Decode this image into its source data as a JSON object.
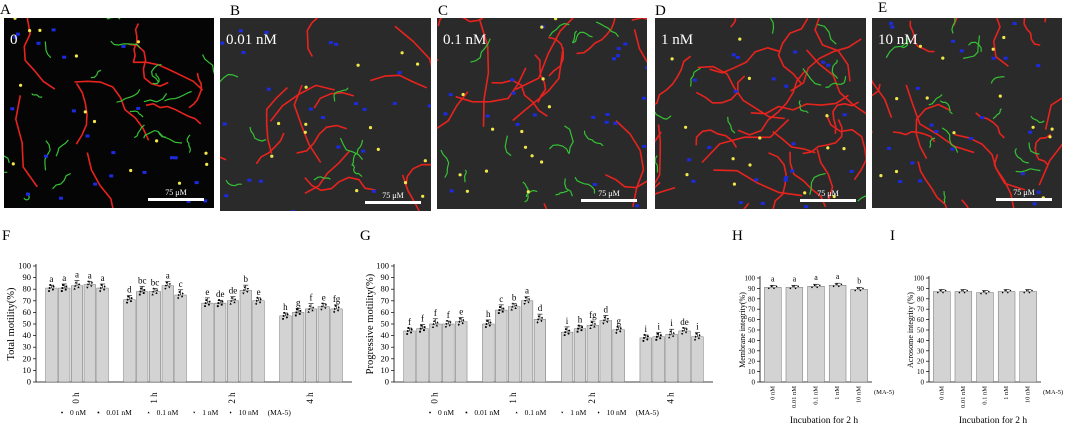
{
  "micrographs": [
    {
      "letter": "A",
      "concentration": "0",
      "scale": "75 μM"
    },
    {
      "letter": "B",
      "concentration": "0.01 nM",
      "scale": "75 μM"
    },
    {
      "letter": "C",
      "concentration": "0.1 nM",
      "scale": "75 μM"
    },
    {
      "letter": "D",
      "concentration": "1 nM",
      "scale": "75 μM"
    },
    {
      "letter": "E",
      "concentration": "10 nM",
      "scale": "75 μM"
    }
  ],
  "colors": {
    "bar": "#d3d3d3",
    "track_red": "#e8231e",
    "track_green": "#35c234",
    "track_blue": "#1d2be0",
    "track_yellow": "#f2e84a"
  },
  "chart_data": [
    {
      "letter": "F",
      "type": "bar",
      "title": "",
      "xlabel": "",
      "ylabel": "Total motility(%)",
      "ylim": [
        0,
        100
      ],
      "yticks": [
        0,
        10,
        20,
        30,
        40,
        50,
        60,
        70,
        80,
        90,
        100
      ],
      "categories": [
        "0 h",
        "1 h",
        "2 h",
        "4 h"
      ],
      "series": [
        {
          "name": "0 nM",
          "values": [
            81,
            71,
            68,
            57
          ],
          "letters": [
            "a",
            "d",
            "e",
            "h"
          ]
        },
        {
          "name": "0.01 nM",
          "values": [
            81,
            78,
            68,
            60
          ],
          "letters": [
            "a",
            "bc",
            "de",
            "g"
          ]
        },
        {
          "name": "0.1 nM",
          "values": [
            83,
            78,
            70,
            63
          ],
          "letters": [
            "a",
            "bc",
            "de",
            "f"
          ]
        },
        {
          "name": "1 nM",
          "values": [
            84,
            83,
            79,
            65
          ],
          "letters": [
            "a",
            "a",
            "b",
            "e"
          ]
        },
        {
          "name": "10 nM",
          "values": [
            81,
            75,
            70,
            63
          ],
          "letters": [
            "a",
            "c",
            "e",
            "fg"
          ]
        }
      ],
      "legend_suffix": "(MA-5)"
    },
    {
      "letter": "G",
      "type": "bar",
      "title": "",
      "xlabel": "",
      "ylabel": "Progressive motility(%)",
      "ylim": [
        0,
        100
      ],
      "yticks": [
        0,
        10,
        20,
        30,
        40,
        50,
        60,
        70,
        80,
        90,
        100
      ],
      "categories": [
        "0 h",
        "1 h",
        "2 h",
        "4 h"
      ],
      "series": [
        {
          "name": "0 nM",
          "values": [
            44,
            50,
            43,
            38
          ],
          "letters": [
            "f",
            "h",
            "i",
            "i"
          ]
        },
        {
          "name": "0.01 nM",
          "values": [
            46,
            62,
            46,
            39
          ],
          "letters": [
            "f",
            "c",
            "h",
            "i"
          ]
        },
        {
          "name": "0.1 nM",
          "values": [
            50,
            65,
            49,
            41
          ],
          "letters": [
            "f",
            "b",
            "fg",
            "i"
          ]
        },
        {
          "name": "1 nM",
          "values": [
            50,
            70,
            53,
            44
          ],
          "letters": [
            "f",
            "a",
            "d",
            "de"
          ]
        },
        {
          "name": "10 nM",
          "values": [
            52,
            54,
            45,
            39
          ],
          "letters": [
            "e",
            "d",
            "g",
            "i"
          ]
        }
      ],
      "legend_suffix": "(MA-5)"
    },
    {
      "letter": "H",
      "type": "bar",
      "title": "",
      "xlabel": "Incubation for 2 h",
      "ylabel": "Membrane integrity(%)",
      "ylim": [
        0,
        100
      ],
      "yticks": [
        0,
        10,
        20,
        30,
        40,
        50,
        60,
        70,
        80,
        90,
        100
      ],
      "categories": [
        "0 nM",
        "0.01 nM",
        "0.1 nM",
        "1 nM",
        "10 nM"
      ],
      "values": [
        91,
        91,
        92,
        93,
        89
      ],
      "letters": [
        "a",
        "a",
        "a",
        "a",
        "b"
      ],
      "suffix": "(MA-5)"
    },
    {
      "letter": "I",
      "type": "bar",
      "title": "",
      "xlabel": "Incubation for 2 h",
      "ylabel": "Acrosome integrity (%)",
      "ylim": [
        0,
        100
      ],
      "yticks": [
        0,
        10,
        20,
        30,
        40,
        50,
        60,
        70,
        80,
        90,
        100
      ],
      "categories": [
        "0 nM",
        "0.01 nM",
        "0.1 nM",
        "1 nM",
        "10 nM"
      ],
      "values": [
        87,
        87,
        86,
        87,
        87
      ],
      "letters": [],
      "suffix": "(MA-5)"
    }
  ]
}
